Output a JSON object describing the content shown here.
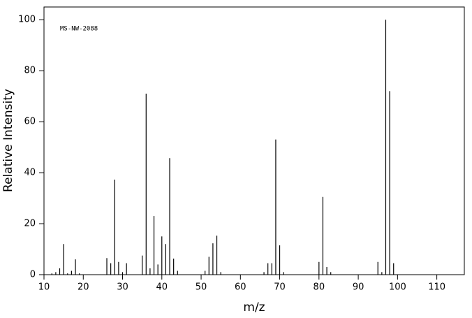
{
  "chart_data": {
    "type": "bar",
    "annotation": "MS-NW-2088",
    "xlabel": "m/z",
    "ylabel": "Relative Intensity",
    "x": [
      12,
      13,
      14,
      15,
      16,
      17,
      18,
      19,
      26,
      27,
      28,
      29,
      30,
      31,
      35,
      36,
      37,
      38,
      39,
      40,
      41,
      42,
      43,
      44,
      51,
      52,
      53,
      54,
      55,
      66,
      67,
      68,
      69,
      70,
      71,
      80,
      81,
      82,
      83,
      95,
      96,
      97,
      98,
      99
    ],
    "values": [
      0.5,
      1,
      2.5,
      12,
      0.5,
      1.5,
      6,
      0.5,
      6.5,
      4.5,
      37.3,
      5,
      1,
      4.5,
      7.5,
      71,
      2.5,
      23,
      4,
      15,
      12,
      45.7,
      6.3,
      1.5,
      1.5,
      7,
      12.3,
      15.3,
      1,
      1,
      4.5,
      4.5,
      53,
      11.5,
      1,
      5,
      30.5,
      3,
      1,
      5,
      1,
      100,
      72,
      4.5
    ],
    "color": "#000000",
    "xlim": [
      10,
      117
    ],
    "xticks": [
      10,
      20,
      30,
      40,
      50,
      60,
      70,
      80,
      90,
      100,
      110
    ],
    "ylim": [
      0,
      105
    ],
    "yticks": [
      0,
      20,
      40,
      60,
      80,
      100
    ]
  }
}
